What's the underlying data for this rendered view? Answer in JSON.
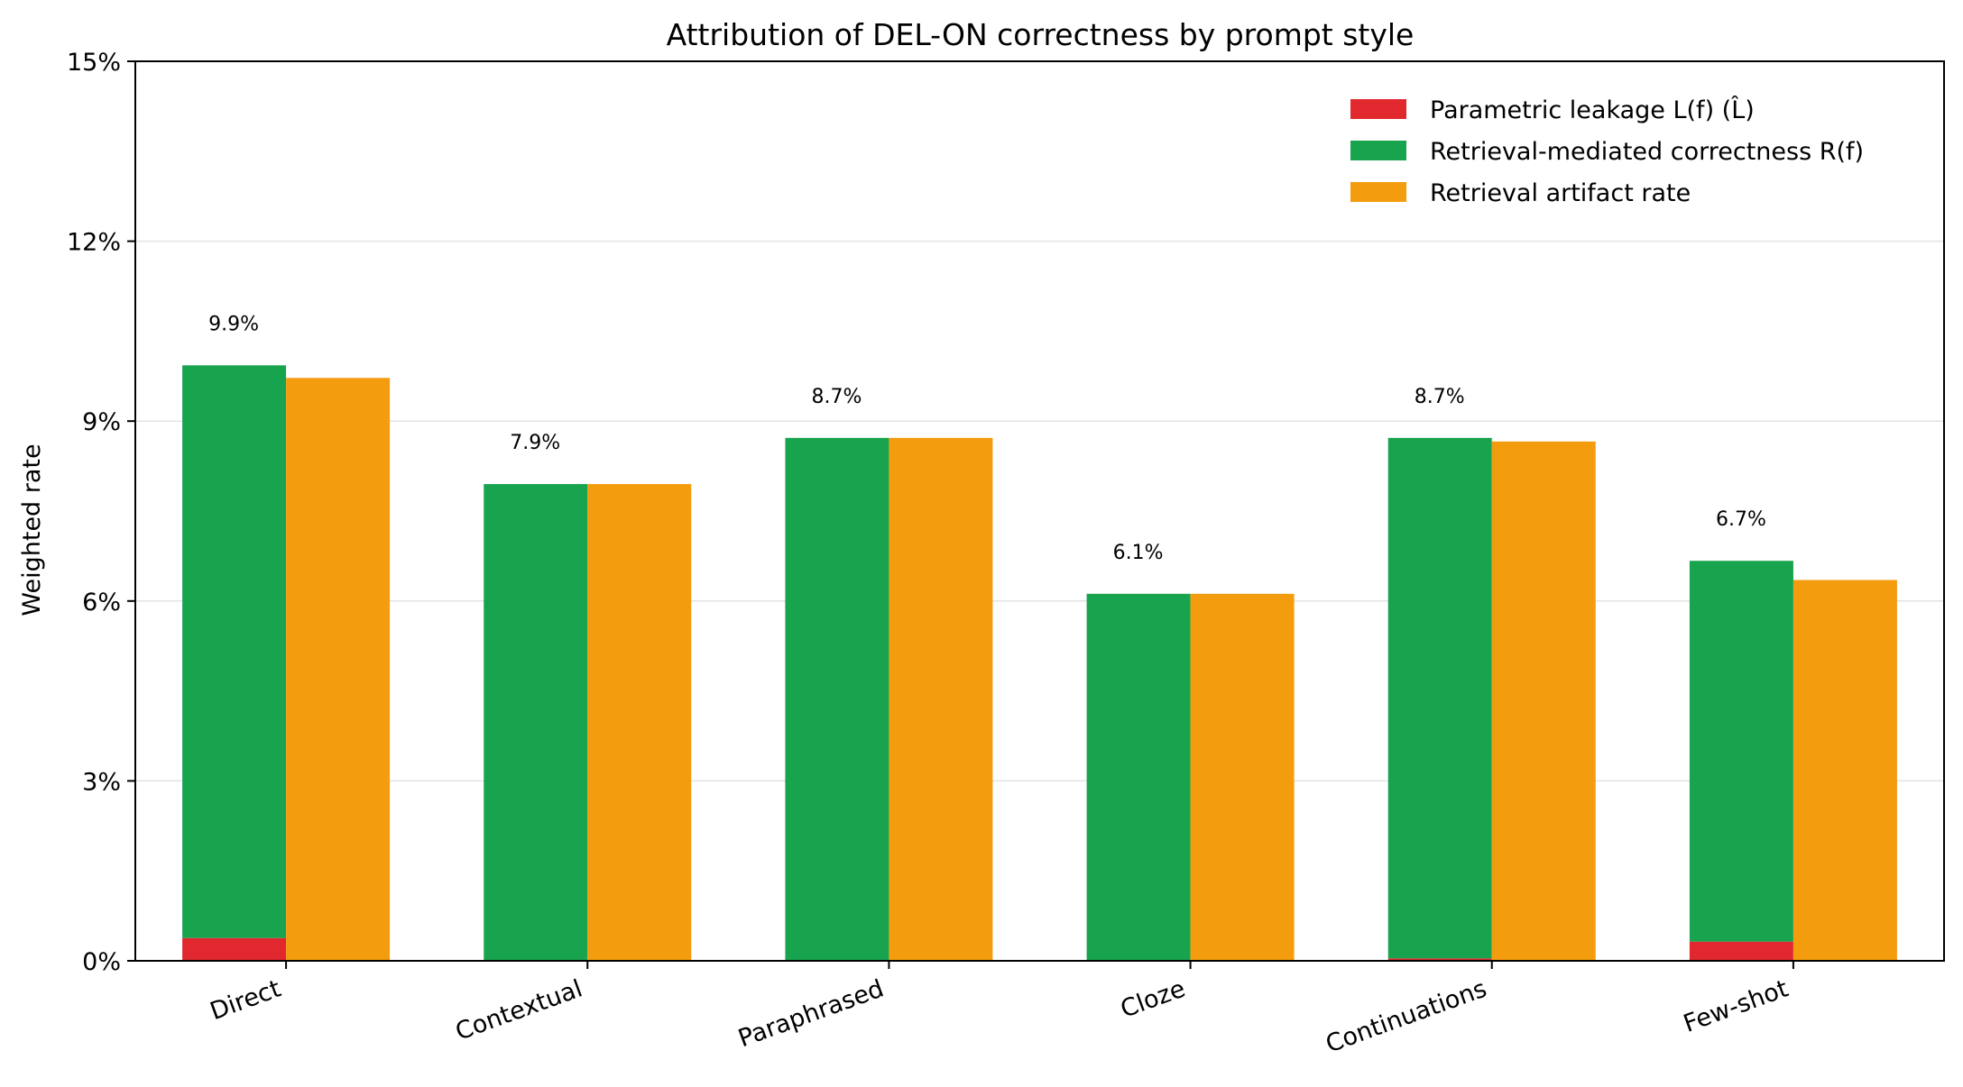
{
  "chart_data": {
    "type": "bar",
    "title": "Attribution of DEL-ON correctness by prompt style",
    "xlabel": "",
    "ylabel": "Weighted rate",
    "ylim": [
      0,
      15
    ],
    "y_ticks": [
      "0%",
      "3%",
      "6%",
      "9%",
      "12%",
      "15%"
    ],
    "y_tick_values": [
      0,
      3,
      6,
      9,
      12,
      15
    ],
    "grid": "horizontal",
    "legend_position": "top-right",
    "categories": [
      "Direct",
      "Contextual",
      "Paraphrased",
      "Cloze",
      "Continuations",
      "Few-shot"
    ],
    "series": [
      {
        "name": "Parametric leakage L(f) (L̂)",
        "stack": "left",
        "color": "#e0282e",
        "values": [
          0.38,
          0.0,
          0.0,
          0.0,
          0.04,
          0.32
        ]
      },
      {
        "name": "Retrieval-mediated correctness R(f)",
        "stack": "left",
        "color": "#18a34e",
        "values": [
          9.55,
          7.95,
          8.72,
          6.12,
          8.68,
          6.35
        ]
      },
      {
        "name": "Retrieval artifact rate",
        "stack": "right",
        "color": "#f39c0e",
        "values": [
          9.72,
          7.95,
          8.72,
          6.12,
          8.66,
          6.35
        ]
      }
    ],
    "data_labels": [
      "9.9%",
      "7.9%",
      "8.7%",
      "6.1%",
      "8.7%",
      "6.7%"
    ]
  }
}
